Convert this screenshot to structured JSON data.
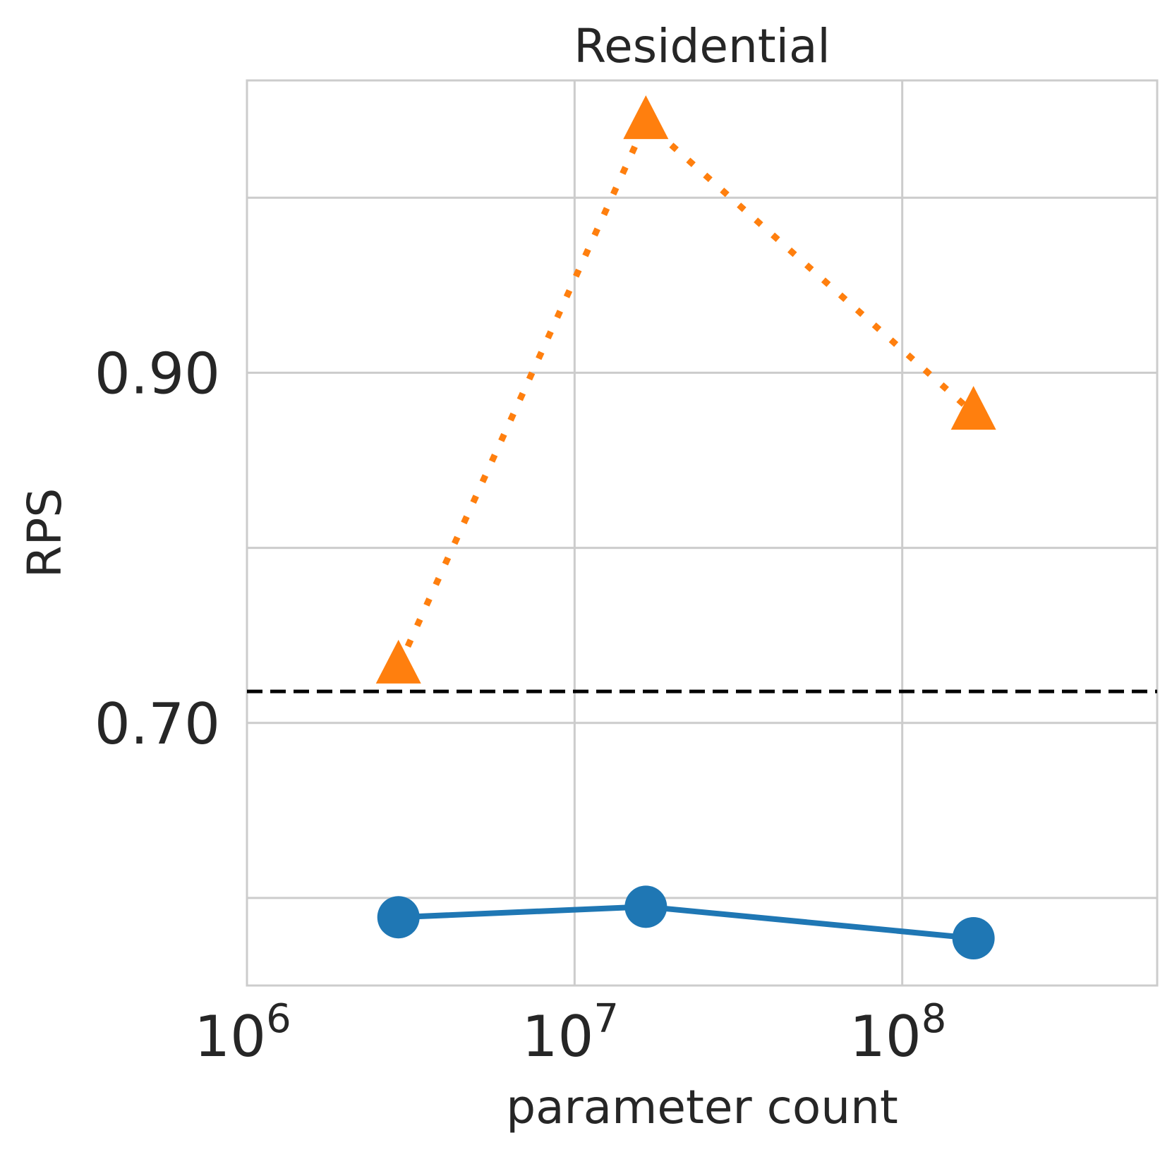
{
  "chart_data": {
    "type": "line",
    "title": "Residential",
    "xlabel": "parameter count",
    "ylabel": "RPS",
    "xscale": "log",
    "xlim": [
      1000000,
      600000000
    ],
    "ylim": [
      0.55,
      1.067
    ],
    "x_ticks": [
      {
        "value": 1000000,
        "base": "10",
        "exp": "6"
      },
      {
        "value": 10000000,
        "base": "10",
        "exp": "7"
      },
      {
        "value": 100000000,
        "base": "10",
        "exp": "8"
      }
    ],
    "y_ticks": [
      0.6,
      0.7,
      0.8,
      0.9,
      1.0
    ],
    "y_tick_labels": [
      {
        "value": 0.7,
        "text": "0.70"
      },
      {
        "value": 0.9,
        "text": "0.90"
      }
    ],
    "grid": true,
    "reference_line": {
      "y": 0.718,
      "color": "#000000",
      "style": "dashed"
    },
    "series": [
      {
        "color": "#ff7f0e",
        "marker": "triangle",
        "line_style": "dotted",
        "x": [
          2900000,
          16500000,
          165000000
        ],
        "y": [
          0.732,
          1.043,
          0.877
        ]
      },
      {
        "color": "#1f77b4",
        "marker": "circle",
        "line_style": "solid",
        "x": [
          2900000,
          16500000,
          165000000
        ],
        "y": [
          0.589,
          0.595,
          0.577
        ]
      }
    ]
  }
}
